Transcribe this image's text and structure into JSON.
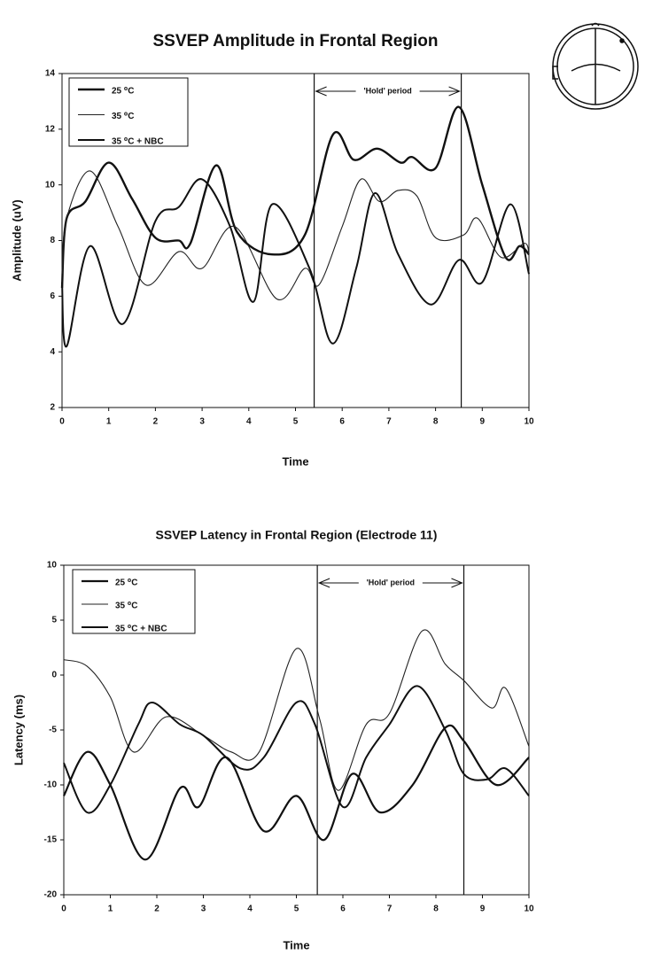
{
  "chart_data": [
    {
      "type": "line",
      "title": "SSVEP Amplitude in Frontal Region",
      "xlabel": "Time",
      "ylabel": "Amplitude (uV)",
      "xlim": [
        0,
        10
      ],
      "xticks": [
        0,
        1,
        2,
        3,
        4,
        5,
        6,
        7,
        8,
        9,
        10
      ],
      "ylim": [
        2,
        14
      ],
      "yticks": [
        2,
        4,
        6,
        8,
        10,
        12,
        14
      ],
      "hold_period": [
        5.4,
        8.55
      ],
      "annotation": "'Hold' period",
      "series": [
        {
          "name": "25 ⁰C",
          "color": "#111111",
          "x": [
            0,
            0.1,
            0.5,
            1.0,
            1.5,
            2.0,
            2.5,
            2.75,
            3.3,
            3.75,
            4.5,
            5.2,
            5.8,
            6.25,
            6.75,
            7.25,
            7.5,
            8.0,
            8.5,
            9.0,
            9.5,
            9.8,
            10
          ],
          "values": [
            6.3,
            8.8,
            9.4,
            10.8,
            9.5,
            8.1,
            8.0,
            7.9,
            10.7,
            8.3,
            7.5,
            8.2,
            11.8,
            10.9,
            11.3,
            10.8,
            11.0,
            10.6,
            12.8,
            10.0,
            7.4,
            7.8,
            7.5
          ]
        },
        {
          "name": "35 ⁰C",
          "color": "#222222",
          "x": [
            0,
            0.1,
            0.6,
            1.2,
            1.8,
            2.5,
            3.0,
            3.7,
            4.6,
            5.2,
            5.5,
            6.0,
            6.4,
            6.8,
            7.2,
            7.6,
            8.0,
            8.6,
            8.9,
            9.4,
            9.9,
            10
          ],
          "values": [
            6.8,
            8.8,
            10.5,
            8.5,
            6.4,
            7.6,
            7.0,
            8.5,
            5.9,
            7.0,
            6.4,
            8.5,
            10.2,
            9.4,
            9.8,
            9.6,
            8.1,
            8.2,
            8.8,
            7.4,
            7.9,
            7.5
          ]
        },
        {
          "name": "35 ⁰C + NBC",
          "color": "#111111",
          "x": [
            0,
            0.1,
            0.6,
            1.3,
            2.0,
            2.5,
            3.0,
            3.6,
            4.1,
            4.5,
            5.3,
            5.8,
            6.3,
            6.7,
            7.2,
            7.9,
            8.5,
            9.0,
            9.6,
            10
          ],
          "values": [
            6.5,
            4.2,
            7.8,
            5.0,
            8.7,
            9.2,
            10.2,
            8.5,
            5.8,
            9.3,
            7.0,
            4.3,
            7.0,
            9.7,
            7.5,
            5.7,
            7.3,
            6.5,
            9.3,
            6.8
          ]
        }
      ]
    },
    {
      "type": "line",
      "title": "SSVEP Latency in Frontal Region (Electrode 11)",
      "xlabel": "Time",
      "ylabel": "Latency (ms)",
      "xlim": [
        0,
        10
      ],
      "xticks": [
        0,
        1,
        2,
        3,
        4,
        5,
        6,
        7,
        8,
        9,
        10
      ],
      "ylim": [
        -20,
        10
      ],
      "yticks": [
        -20,
        -15,
        -10,
        -5,
        0,
        5,
        10
      ],
      "hold_period": [
        5.45,
        8.6
      ],
      "annotation": "'Hold' period",
      "series": [
        {
          "name": "25 ⁰C",
          "color": "#111111",
          "x": [
            0,
            0.5,
            1.0,
            1.75,
            2.5,
            2.9,
            3.5,
            4.3,
            5.0,
            5.6,
            6.2,
            6.8,
            7.5,
            8.2,
            8.6,
            9.3,
            10
          ],
          "values": [
            -11,
            -7,
            -10,
            -16.8,
            -10.3,
            -12,
            -7.5,
            -14.2,
            -11,
            -15,
            -9,
            -12.5,
            -10,
            -4.8,
            -6,
            -10,
            -7.5
          ]
        },
        {
          "name": "35 ⁰C",
          "color": "#222222",
          "x": [
            0,
            0.5,
            1.0,
            1.5,
            2.2,
            3.0,
            3.6,
            4.2,
            5.0,
            5.5,
            5.9,
            6.5,
            7.0,
            7.7,
            8.2,
            8.6,
            9.2,
            9.5,
            10
          ],
          "values": [
            1.4,
            0.8,
            -2,
            -7,
            -3.8,
            -5.5,
            -7,
            -7,
            2.4,
            -4,
            -10.5,
            -4.5,
            -3.5,
            4,
            1,
            -0.5,
            -3,
            -1.2,
            -6.5
          ]
        },
        {
          "name": "35 ⁰C + NBC",
          "color": "#111111",
          "x": [
            0,
            0.5,
            1.0,
            1.6,
            1.9,
            2.5,
            3.0,
            3.8,
            4.3,
            5.0,
            5.4,
            6.0,
            6.5,
            7.0,
            7.6,
            8.2,
            8.6,
            9.1,
            9.5,
            10
          ],
          "values": [
            -8,
            -12.5,
            -10,
            -4.5,
            -2.5,
            -4.5,
            -5.5,
            -8.5,
            -7.5,
            -2.5,
            -4.5,
            -12,
            -7.5,
            -4.5,
            -1,
            -5,
            -9,
            -9.5,
            -8.5,
            -11
          ]
        }
      ]
    }
  ]
}
